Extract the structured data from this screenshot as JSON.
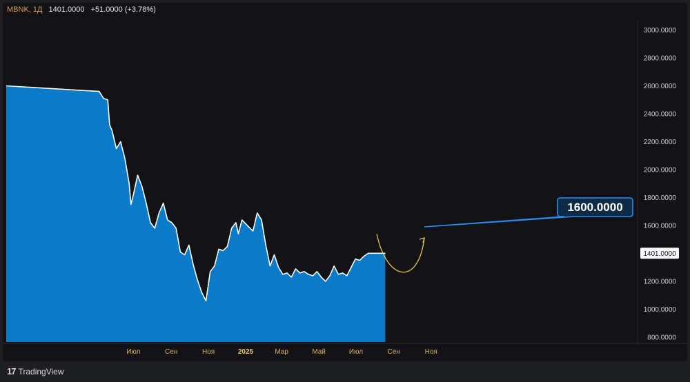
{
  "header": {
    "symbol": "MBNK, 1Д",
    "last": "1401.0000",
    "change": "+51.0000 (+3.78%)"
  },
  "brand": {
    "logo_mark": "17",
    "name": "TradingView"
  },
  "target_label": "1600.0000",
  "last_price_tag": "1401.0000",
  "colors": {
    "background": "#131317",
    "frame": "#1e1f23",
    "area_fill": "#0b7bc9",
    "line": "#ffffff",
    "projection": "#e8c53a",
    "target_border": "#2d8cf0",
    "axis_text": "#d0d0d0",
    "time_axis_text": "#d7b25a"
  },
  "chart_data": {
    "type": "area",
    "title": "",
    "xlabel": "",
    "ylabel": "",
    "ylim": [
      780,
      3100
    ],
    "y_ticks": [
      "3000.0000",
      "2800.0000",
      "2600.0000",
      "2400.0000",
      "2200.0000",
      "2000.0000",
      "1800.0000",
      "1600.0000",
      "1400.0000",
      "1200.0000",
      "1000.0000",
      "800.0000"
    ],
    "y_tick_values": [
      3000,
      2800,
      2600,
      2400,
      2200,
      2000,
      1800,
      1600,
      1400,
      1200,
      1000,
      800
    ],
    "x_ticks": [
      "Июл",
      "Сен",
      "Ноя",
      "2025",
      "Мар",
      "Май",
      "Июл",
      "Сен",
      "Ноя"
    ],
    "x_tick_dates": [
      "2024-07-01",
      "2024-09-01",
      "2024-11-01",
      "2025-01-01",
      "2025-03-01",
      "2025-05-01",
      "2025-07-01",
      "2025-09-01",
      "2025-11-01"
    ],
    "x_bold": [
      "2025"
    ],
    "grid": false,
    "series": [
      {
        "x": [
          "2024-05-01",
          "2024-05-06",
          "2024-05-13",
          "2024-05-20",
          "2024-05-23",
          "2024-05-27",
          "2024-06-03",
          "2024-06-10",
          "2024-06-17",
          "2024-06-24",
          "2024-06-27",
          "2024-07-01",
          "2024-07-08",
          "2024-07-15",
          "2024-07-22",
          "2024-07-29",
          "2024-08-05",
          "2024-08-12",
          "2024-08-19",
          "2024-08-26",
          "2024-09-02",
          "2024-09-09",
          "2024-09-16",
          "2024-09-23",
          "2024-09-30",
          "2024-10-07",
          "2024-10-14",
          "2024-10-21",
          "2024-10-28",
          "2024-11-04",
          "2024-11-11",
          "2024-11-18",
          "2024-11-25",
          "2024-12-02",
          "2024-12-09",
          "2024-12-16",
          "2024-12-20",
          "2024-12-26",
          "2025-01-06",
          "2025-01-13",
          "2025-01-20",
          "2025-01-27",
          "2025-02-03",
          "2025-02-10",
          "2025-02-17",
          "2025-02-24",
          "2025-03-03",
          "2025-03-10",
          "2025-03-17",
          "2025-03-24",
          "2025-03-31",
          "2025-04-07",
          "2025-04-14",
          "2025-04-21",
          "2025-04-28",
          "2025-05-05",
          "2025-05-12",
          "2025-05-19",
          "2025-05-26",
          "2025-06-02",
          "2025-06-09",
          "2025-06-16",
          "2025-06-23",
          "2025-06-30",
          "2025-07-07",
          "2025-07-14",
          "2025-07-21",
          "2025-07-28",
          "2025-08-04",
          "2025-08-11",
          "2025-08-18"
        ],
        "y": [
          2600,
          2560,
          2510,
          2500,
          2320,
          2280,
          2150,
          2200,
          2080,
          1900,
          1750,
          1820,
          1960,
          1880,
          1760,
          1620,
          1580,
          1690,
          1760,
          1640,
          1620,
          1580,
          1410,
          1390,
          1460,
          1320,
          1210,
          1120,
          1060,
          1270,
          1310,
          1430,
          1420,
          1450,
          1580,
          1620,
          1540,
          1640,
          1590,
          1560,
          1690,
          1640,
          1460,
          1310,
          1390,
          1300,
          1250,
          1260,
          1230,
          1290,
          1260,
          1270,
          1250,
          1240,
          1270,
          1230,
          1200,
          1240,
          1310,
          1250,
          1260,
          1240,
          1300,
          1360,
          1350,
          1380,
          1401,
          1401,
          1401,
          1401,
          1401
        ]
      }
    ],
    "projection": {
      "from_date": "2025-08-04",
      "from_value": 1401,
      "to_date": "2025-10-21",
      "to_value": 1600
    }
  }
}
